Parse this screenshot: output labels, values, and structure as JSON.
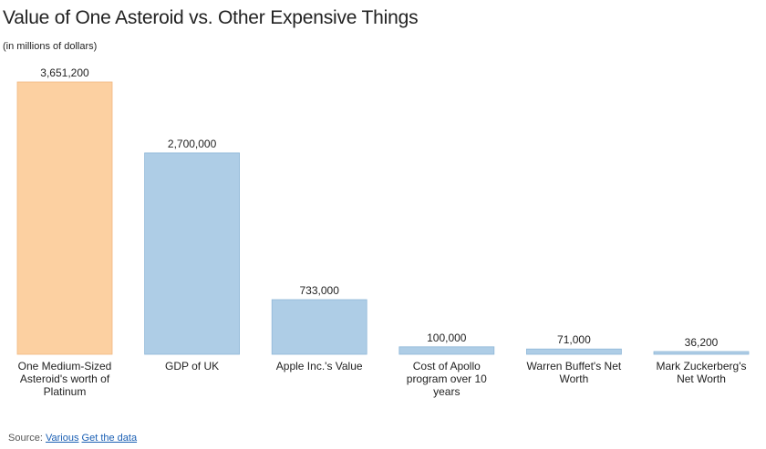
{
  "chart_data": {
    "type": "bar",
    "title": "Value of One Asteroid vs. Other Expensive Things",
    "subtitle": "(in millions of dollars)",
    "categories": [
      "One Medium-Sized Asteroid's worth of Platinum",
      "GDP of UK",
      "Apple Inc.'s Value",
      "Cost of Apollo program over 10 years",
      "Warren Buffet's Net Worth",
      "Mark Zuckerberg's Net Worth"
    ],
    "values": [
      3651200,
      2700000,
      733000,
      100000,
      71000,
      36200
    ],
    "value_labels": [
      "3,651,200",
      "2,700,000",
      "733,000",
      "100,000",
      "71,000",
      "36,200"
    ],
    "colors": [
      "#fcd0a1",
      "#aecde6",
      "#aecde6",
      "#aecde6",
      "#aecde6",
      "#aecde6"
    ],
    "ylim": [
      0,
      3651200
    ],
    "grid": false
  },
  "footer": {
    "source_prefix": "Source:",
    "source_link": "Various",
    "data_link": "Get the data"
  }
}
